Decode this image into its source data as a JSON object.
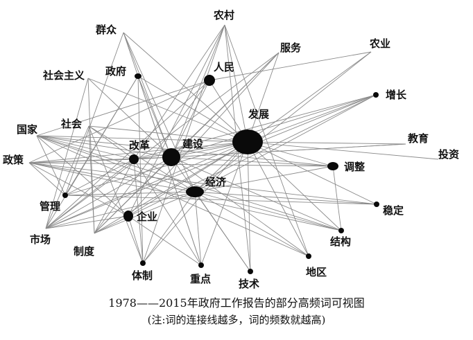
{
  "caption": {
    "line1": "1978——2015年政府工作报告的部分高频词可视图",
    "line2": "(注:词的连接线越多，词的频数就越高)"
  },
  "nodes": [
    {
      "id": "fazhan",
      "label": "发展"
    },
    {
      "id": "jianshe",
      "label": "建设"
    },
    {
      "id": "jingji",
      "label": "经济"
    },
    {
      "id": "gaige",
      "label": "改革"
    },
    {
      "id": "renmin",
      "label": "人民"
    },
    {
      "id": "tiaozheng",
      "label": "调整"
    },
    {
      "id": "qiye",
      "label": "企业"
    },
    {
      "id": "zhengfu",
      "label": "政府"
    },
    {
      "id": "zengzhang",
      "label": "增长"
    },
    {
      "id": "guanli",
      "label": "管理"
    },
    {
      "id": "wending",
      "label": "稳定"
    },
    {
      "id": "jiegou",
      "label": "结构"
    },
    {
      "id": "diqu",
      "label": "地区"
    },
    {
      "id": "jishu",
      "label": "技术"
    },
    {
      "id": "zhongdian",
      "label": "重点"
    },
    {
      "id": "tizhi",
      "label": "体制"
    },
    {
      "id": "nongcun",
      "label": "农村"
    },
    {
      "id": "qunzhong",
      "label": "群众"
    },
    {
      "id": "fuwu",
      "label": "服务"
    },
    {
      "id": "nongye",
      "label": "农业"
    },
    {
      "id": "shehuizhuyi",
      "label": "社会主义"
    },
    {
      "id": "shehui",
      "label": "社会"
    },
    {
      "id": "guojia",
      "label": "国家"
    },
    {
      "id": "zhengce",
      "label": "政策"
    },
    {
      "id": "jiaoyu",
      "label": "教育"
    },
    {
      "id": "touzi",
      "label": "投资"
    },
    {
      "id": "shichang",
      "label": "市场"
    },
    {
      "id": "zhidu",
      "label": "制度"
    }
  ],
  "edges": [
    [
      "fazhan",
      "nongcun"
    ],
    [
      "fazhan",
      "qunzhong"
    ],
    [
      "fazhan",
      "fuwu"
    ],
    [
      "fazhan",
      "nongye"
    ],
    [
      "fazhan",
      "zengzhang"
    ],
    [
      "fazhan",
      "jiaoyu"
    ],
    [
      "fazhan",
      "touzi"
    ],
    [
      "fazhan",
      "tiaozheng"
    ],
    [
      "fazhan",
      "wending"
    ],
    [
      "fazhan",
      "jiegou"
    ],
    [
      "fazhan",
      "diqu"
    ],
    [
      "fazhan",
      "jishu"
    ],
    [
      "fazhan",
      "zhongdian"
    ],
    [
      "fazhan",
      "tizhi"
    ],
    [
      "fazhan",
      "zhidu"
    ],
    [
      "fazhan",
      "shichang"
    ],
    [
      "fazhan",
      "guanli"
    ],
    [
      "fazhan",
      "zhengce"
    ],
    [
      "fazhan",
      "guojia"
    ],
    [
      "fazhan",
      "shehui"
    ],
    [
      "fazhan",
      "shehuizhuyi"
    ],
    [
      "fazhan",
      "zhengfu"
    ],
    [
      "fazhan",
      "renmin"
    ],
    [
      "fazhan",
      "gaige"
    ],
    [
      "fazhan",
      "jianshe"
    ],
    [
      "fazhan",
      "jingji"
    ],
    [
      "fazhan",
      "qiye"
    ],
    [
      "jianshe",
      "nongcun"
    ],
    [
      "jianshe",
      "shehuizhuyi"
    ],
    [
      "jianshe",
      "guojia"
    ],
    [
      "jianshe",
      "zhengce"
    ],
    [
      "jianshe",
      "shichang"
    ],
    [
      "jianshe",
      "zhidu"
    ],
    [
      "jianshe",
      "jishu"
    ],
    [
      "jianshe",
      "zengzhang"
    ],
    [
      "jianshe",
      "jiaoyu"
    ],
    [
      "jianshe",
      "fuwu"
    ],
    [
      "jianshe",
      "renmin"
    ],
    [
      "jianshe",
      "zhengfu"
    ],
    [
      "jianshe",
      "tiaozheng"
    ],
    [
      "jianshe",
      "jiegou"
    ],
    [
      "jianshe",
      "qunzhong"
    ],
    [
      "jianshe",
      "diqu"
    ],
    [
      "jingji",
      "nongye"
    ],
    [
      "jingji",
      "tiaozheng"
    ],
    [
      "jingji",
      "wending"
    ],
    [
      "jingji",
      "jiegou"
    ],
    [
      "jingji",
      "shichang"
    ],
    [
      "jingji",
      "guanli"
    ],
    [
      "jingji",
      "tizhi"
    ],
    [
      "jingji",
      "zhongdian"
    ],
    [
      "jingji",
      "zhidu"
    ],
    [
      "jingji",
      "shehui"
    ],
    [
      "jingji",
      "guojia"
    ],
    [
      "jingji",
      "zhengce"
    ],
    [
      "jingji",
      "jishu"
    ],
    [
      "jingji",
      "diqu"
    ],
    [
      "jingji",
      "zengzhang"
    ],
    [
      "jingji",
      "qunzhong"
    ],
    [
      "gaige",
      "nongcun"
    ],
    [
      "gaige",
      "guojia"
    ],
    [
      "gaige",
      "zhengce"
    ],
    [
      "gaige",
      "shichang"
    ],
    [
      "gaige",
      "tizhi"
    ],
    [
      "gaige",
      "zhidu"
    ],
    [
      "gaige",
      "guanli"
    ],
    [
      "gaige",
      "shehui"
    ],
    [
      "gaige",
      "zengzhang"
    ],
    [
      "gaige",
      "jiaoyu"
    ],
    [
      "gaige",
      "zhongdian"
    ],
    [
      "renmin",
      "nongye"
    ],
    [
      "renmin",
      "zhengce"
    ],
    [
      "renmin",
      "guojia"
    ],
    [
      "renmin",
      "shichang"
    ],
    [
      "renmin",
      "zhidu"
    ],
    [
      "qiye",
      "guojia"
    ],
    [
      "qiye",
      "zhengce"
    ],
    [
      "qiye",
      "shichang"
    ],
    [
      "qiye",
      "tizhi"
    ],
    [
      "qiye",
      "zhongdian"
    ],
    [
      "qiye",
      "nongcun"
    ],
    [
      "qiye",
      "fuwu"
    ],
    [
      "zhengfu",
      "tizhi"
    ],
    [
      "zhengfu",
      "guanli"
    ],
    [
      "zhengfu",
      "shichang"
    ],
    [
      "zhengfu",
      "zhongdian"
    ],
    [
      "tiaozheng",
      "jiegou"
    ],
    [
      "tiaozheng",
      "guojia"
    ],
    [
      "tiaozheng",
      "zhengce"
    ],
    [
      "guanli",
      "zhengce"
    ],
    [
      "guanli",
      "guojia"
    ],
    [
      "guanli",
      "wending"
    ],
    [
      "shehui",
      "shichang"
    ],
    [
      "shehui",
      "zhidu"
    ],
    [
      "shehui",
      "tizhi"
    ],
    [
      "shehuizhuyi",
      "zhidu"
    ],
    [
      "shehuizhuyi",
      "shichang"
    ],
    [
      "qunzhong",
      "guanli"
    ],
    [
      "qunzhong",
      "zhongdian"
    ],
    [
      "nongcun",
      "diqu"
    ],
    [
      "nongcun",
      "jishu"
    ],
    [
      "nongcun",
      "tizhi"
    ],
    [
      "fuwu",
      "shichang"
    ],
    [
      "fuwu",
      "zhidu"
    ],
    [
      "zhengce",
      "wending"
    ],
    [
      "zhengce",
      "jiegou"
    ],
    [
      "zengzhang",
      "shichang"
    ],
    [
      "zengzhang",
      "zhidu"
    ],
    [
      "guojia",
      "diqu"
    ],
    [
      "guojia",
      "jiegou"
    ]
  ]
}
